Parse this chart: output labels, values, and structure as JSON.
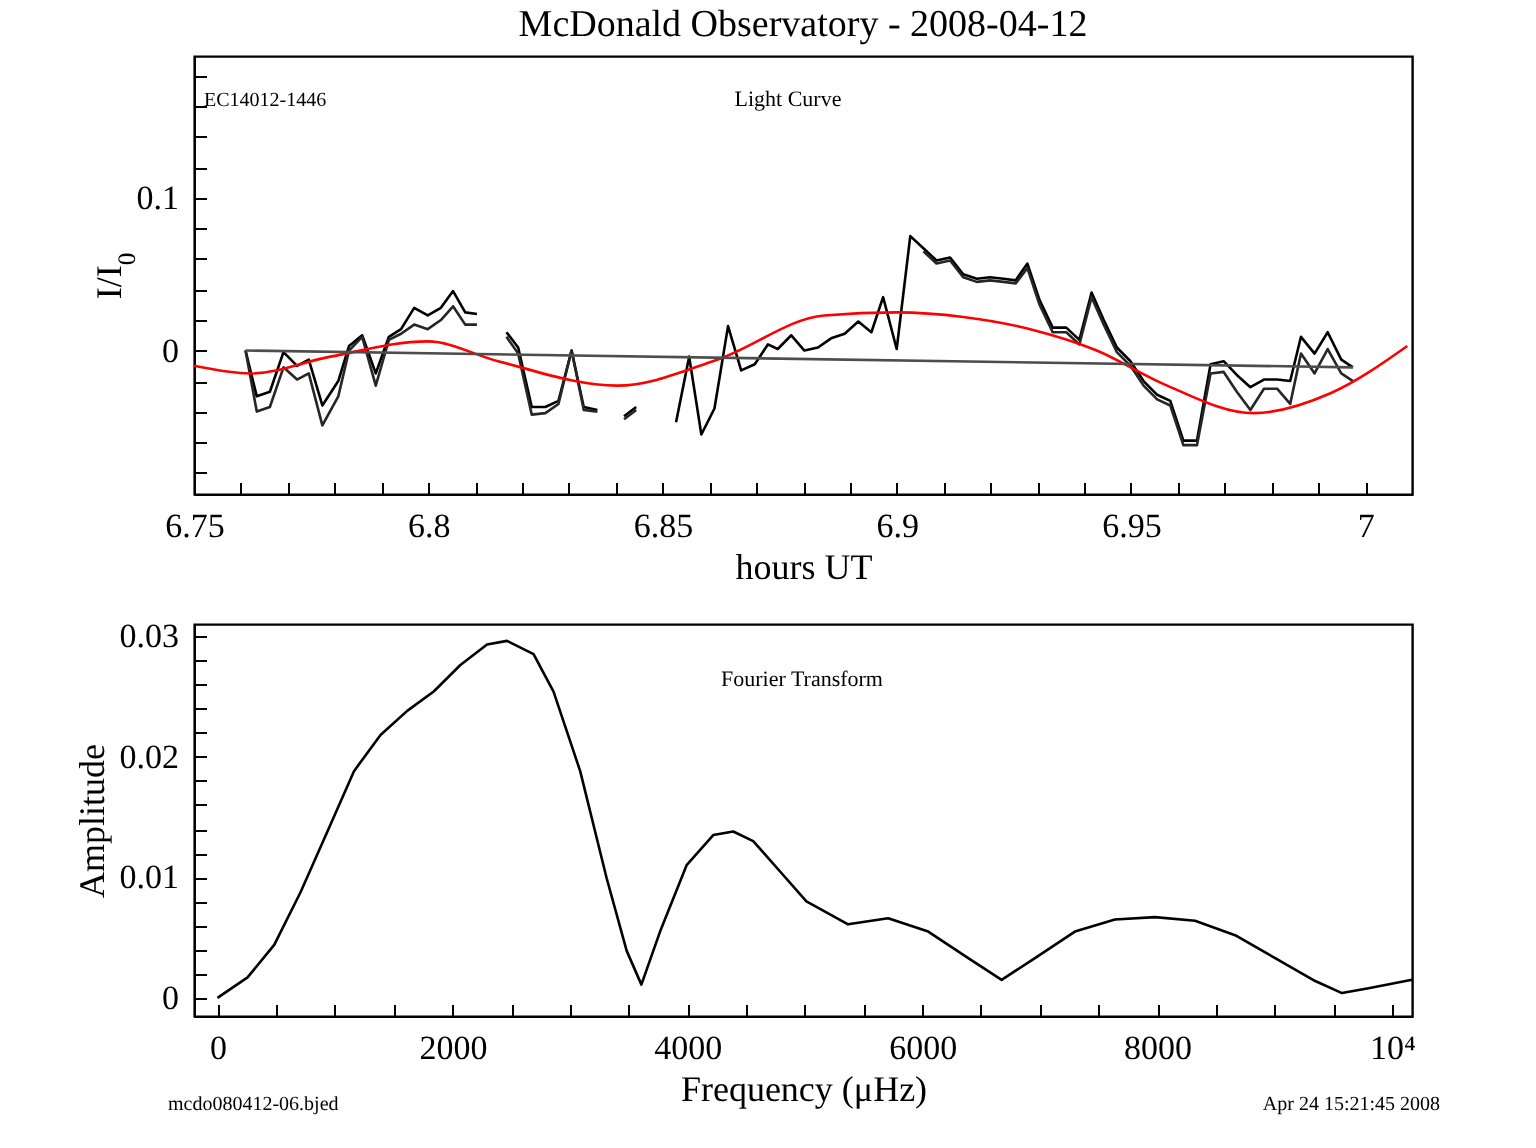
{
  "chart_data": [
    {
      "type": "line",
      "title": "McDonald Observatory - 2008-04-12",
      "xlabel": "hours UT",
      "ylabel": "I/I$_{0}$",
      "annotations": [
        "EC14012-1446",
        "Light Curve"
      ],
      "xlim": [
        6.75,
        7.01
      ],
      "ylim": [
        -0.094,
        0.193
      ],
      "xticks": [
        6.75,
        {
          "value": 6.76,
          "label": null
        },
        {
          "value": 6.77,
          "label": null
        },
        {
          "value": 6.78,
          "label": null
        },
        {
          "value": 6.79,
          "label": null
        },
        6.8,
        {
          "value": 6.81,
          "label": null
        },
        {
          "value": 6.82,
          "label": null
        },
        {
          "value": 6.83,
          "label": null
        },
        {
          "value": 6.84,
          "label": null
        },
        6.85,
        {
          "value": 6.86,
          "label": null
        },
        {
          "value": 6.87,
          "label": null
        },
        {
          "value": 6.88,
          "label": null
        },
        {
          "value": 6.89,
          "label": null
        },
        6.9,
        {
          "value": 6.91,
          "label": null
        },
        {
          "value": 6.92,
          "label": null
        },
        {
          "value": 6.93,
          "label": null
        },
        {
          "value": 6.94,
          "label": null
        },
        6.95,
        {
          "value": 6.96,
          "label": null
        },
        {
          "value": 6.97,
          "label": null
        },
        {
          "value": 6.98,
          "label": null
        },
        {
          "value": 6.99,
          "label": null
        },
        7
      ],
      "yticks": [
        {
          "value": -0.08,
          "label": null
        },
        {
          "value": -0.06,
          "label": null
        },
        {
          "value": -0.04,
          "label": null
        },
        {
          "value": -0.02,
          "label": null
        },
        0,
        {
          "value": 0.02,
          "label": null
        },
        {
          "value": 0.04,
          "label": null
        },
        {
          "value": 0.06,
          "label": null
        },
        {
          "value": 0.08,
          "label": null
        },
        0.1,
        {
          "value": 0.12,
          "label": null
        },
        {
          "value": 0.14,
          "label": null
        },
        {
          "value": 0.16,
          "label": null
        },
        {
          "value": 0.18,
          "label": null
        }
      ],
      "x": [
        6.761,
        6.7634,
        6.7662,
        6.7691,
        6.772,
        6.7745,
        6.7774,
        6.7808,
        6.7831,
        6.7859,
        6.7888,
        6.7916,
        6.7942,
        6.797,
        6.7999,
        6.8027,
        6.8053,
        6.8079,
        6.8104,
        6.8135,
        6.8167,
        6.8192,
        6.8221,
        6.825,
        6.8278,
        6.8306,
        6.8332,
        6.8361,
        6.839,
        6.8418,
        6.8444,
        6.849,
        6.8529,
        6.8557,
        6.8583,
        6.8611,
        6.864,
        6.8668,
        6.8697,
        6.8725,
        6.8746,
        6.8775,
        6.8803,
        6.8832,
        6.886,
        6.8889,
        6.8918,
        6.8946,
        6.8971,
        6.9,
        6.9029,
        6.9057,
        6.9085,
        6.9114,
        6.9142,
        6.9171,
        6.9199,
        6.9228,
        6.9254,
        6.9279,
        6.9305,
        6.9333,
        6.9362,
        6.939,
        6.9416,
        6.9442,
        6.947,
        6.9499,
        6.9527,
        6.9556,
        6.9584,
        6.9612,
        6.9641,
        6.967,
        6.9698,
        6.9726,
        6.9755,
        6.9784,
        6.9812,
        6.984,
        6.9863,
        6.9892,
        6.992,
        6.9949,
        6.9974
      ],
      "series": [
        {
          "color": "#000000",
          "values": [
            0,
            -0.03,
            -0.027,
            -0.001,
            -0.01,
            -0.006,
            -0.036,
            -0.02,
            0.003,
            0.01,
            -0.015,
            0.009,
            0.014,
            0.028,
            0.023,
            0.028,
            0.039,
            0.025,
            0.024,
            null,
            0.012,
            0.002,
            -0.037,
            -0.037,
            -0.033,
            0,
            -0.037,
            -0.039,
            null,
            -0.043,
            -0.037,
            null,
            -0.047,
            -0.004,
            -0.055,
            -0.038,
            0.016,
            -0.013,
            -0.009,
            0.004,
            0.001,
            0.01,
            0,
            0.002,
            0.008,
            0.011,
            0.019,
            0.012,
            0.035,
            0.001,
            0.075,
            0.067,
            0.059,
            0.061,
            0.05,
            0.047,
            0.048,
            0.047,
            0.046,
            0.057,
            0.033,
            0.015,
            0.015,
            0.007,
            0.038,
            0.02,
            0.002,
            -0.007,
            -0.02,
            -0.029,
            -0.033,
            -0.059,
            -0.059,
            -0.009,
            -0.007,
            -0.016,
            -0.024,
            -0.019,
            -0.019,
            -0.02,
            0.009,
            -0.002,
            0.012,
            -0.006,
            -0.011
          ]
        },
        {
          "color": "#262626",
          "values": [
            0,
            -0.04,
            -0.037,
            -0.011,
            -0.019,
            -0.015,
            -0.049,
            -0.03,
            0,
            0.009,
            -0.023,
            0.007,
            0.011,
            0.017,
            0.014,
            0.02,
            0.029,
            0.017,
            0.017,
            null,
            0.009,
            -0.002,
            -0.042,
            -0.041,
            -0.035,
            0,
            -0.039,
            -0.04,
            null,
            -0.045,
            -0.039,
            null,
            null,
            null,
            null,
            null,
            null,
            null,
            null,
            null,
            null,
            null,
            null,
            null,
            null,
            null,
            null,
            null,
            null,
            null,
            null,
            0.065,
            0.057,
            0.059,
            0.048,
            0.045,
            0.046,
            0.045,
            0.044,
            0.054,
            0.03,
            0.012,
            0.012,
            0.004,
            0.035,
            0.017,
            -0.001,
            -0.01,
            -0.023,
            -0.032,
            -0.036,
            -0.062,
            -0.062,
            -0.015,
            -0.014,
            -0.027,
            -0.039,
            -0.025,
            -0.025,
            -0.035,
            -0.002,
            -0.015,
            0.001,
            -0.015,
            -0.02
          ]
        },
        {
          "color": "#ff0000",
          "x": [
            6.75,
            6.7621,
            6.7791,
            6.7999,
            6.8149,
            6.8403,
            6.8617,
            6.8845,
            6.9,
            6.9142,
            6.9285,
            6.9427,
            6.957,
            6.9762,
            6.9926,
            7.009
          ],
          "values": [
            -0.01,
            -0.015,
            -0.004,
            0.006,
            -0.007,
            -0.023,
            -0.006,
            0.023,
            0.025,
            0.022,
            0.014,
            0,
            -0.022,
            -0.041,
            -0.028,
            0.003
          ]
        },
        {
          "color": "#4d4d4d",
          "x": [
            6.761,
            6.9974
          ],
          "values": [
            0,
            -0.011
          ]
        }
      ]
    },
    {
      "type": "line",
      "xlabel": "Frequency (μHz)",
      "ylabel": "Amplitude",
      "annotations": [
        "Fourier Transform",
        "mcdo080412-06.bjed",
        "Apr 24 15:21:45 2008"
      ],
      "xlim": [
        -200,
        10170
      ],
      "ylim": [
        -0.0015,
        0.031
      ],
      "xticks": [
        0,
        {
          "value": 500,
          "label": null
        },
        {
          "value": 1000,
          "label": null
        },
        {
          "value": 1500,
          "label": null
        },
        2000,
        {
          "value": 2500,
          "label": null
        },
        {
          "value": 3000,
          "label": null
        },
        {
          "value": 3500,
          "label": null
        },
        4000,
        {
          "value": 4500,
          "label": null
        },
        {
          "value": 5000,
          "label": null
        },
        {
          "value": 5500,
          "label": null
        },
        6000,
        {
          "value": 6500,
          "label": null
        },
        {
          "value": 7000,
          "label": null
        },
        {
          "value": 7500,
          "label": null
        },
        8000,
        {
          "value": 8500,
          "label": null
        },
        {
          "value": 9000,
          "label": null
        },
        {
          "value": 9500,
          "label": null
        },
        {
          "value": 10000,
          "label": "10⁴"
        }
      ],
      "yticks": [
        0,
        {
          "value": 0.002,
          "label": null
        },
        {
          "value": 0.004,
          "label": null
        },
        {
          "value": 0.006,
          "label": null
        },
        {
          "value": 0.008,
          "label": null
        },
        0.01,
        {
          "value": 0.012,
          "label": null
        },
        {
          "value": 0.014,
          "label": null
        },
        {
          "value": 0.016,
          "label": null
        },
        {
          "value": 0.018,
          "label": null
        },
        0.02,
        {
          "value": 0.022,
          "label": null
        },
        {
          "value": 0.024,
          "label": null
        },
        {
          "value": 0.026,
          "label": null
        },
        {
          "value": 0.028,
          "label": null
        },
        0.03
      ],
      "series": [
        {
          "color": "#000000",
          "x": [
            0,
            256,
            483,
            709,
            936,
            1162,
            1388,
            1615,
            1841,
            2068,
            2295,
            2465,
            2691,
            2861,
            3088,
            3314,
            3484,
            3609,
            3768,
            3994,
            4221,
            4391,
            4561,
            4788,
            5014,
            5369,
            5710,
            6051,
            6392,
            6676,
            6960,
            7300,
            7641,
            7982,
            8323,
            8664,
            9005,
            9346,
            9574,
            9800,
            10170
          ],
          "values": [
            0,
            0.0017,
            0.0044,
            0.0088,
            0.0138,
            0.0188,
            0.0218,
            0.0238,
            0.0254,
            0.0276,
            0.0293,
            0.0296,
            0.0285,
            0.0254,
            0.0188,
            0.0099,
            0.0039,
            0.0011,
            0.0055,
            0.011,
            0.0135,
            0.0138,
            0.013,
            0.0105,
            0.008,
            0.0061,
            0.0066,
            0.0055,
            0.0033,
            0.0015,
            0.0033,
            0.0055,
            0.0065,
            0.0067,
            0.0064,
            0.0052,
            0.0033,
            0.0014,
            0.0004,
            0.0008,
            0.0015
          ]
        }
      ]
    }
  ]
}
